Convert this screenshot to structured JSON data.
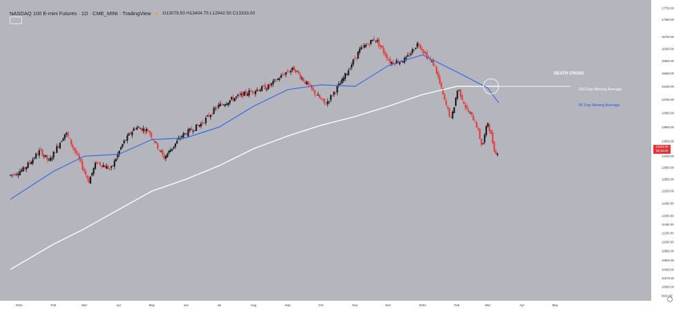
{
  "header": {
    "title": "NASDAQ 100 E-mini Futures · 1D · CME_MINI · TradingView",
    "ohlc": "O13079.50 H13404.75 L12942.50 C13333.00"
  },
  "annotations": {
    "death_cross": "DEATH CROSS",
    "ma200_label": "200 Day Moving Average",
    "ma50_label": "50 Day Moving Average"
  },
  "price_tag": {
    "price": "13333.00",
    "countdown": "02:16:49"
  },
  "colors": {
    "background": "#b4b5bd",
    "up_candle": "#1a1a1a",
    "down_candle": "#e2403f",
    "ma200": "#ffffff",
    "ma50": "#2f62e6",
    "price_tag": "#e0353b"
  },
  "chart_data": {
    "type": "candlestick",
    "title": "NASDAQ 100 E-mini Futures · 1D · CME_MINI · TradingView",
    "x_ticks": [
      "2021",
      "Feb",
      "Mar",
      "Apr",
      "May",
      "Jun",
      "Jul",
      "Aug",
      "Sep",
      "Oct",
      "Nov",
      "Dec",
      "2022",
      "Feb",
      "Mar",
      "Apr",
      "May"
    ],
    "y_ticks": [
      17750,
      17350,
      16750,
      16350,
      15950,
      15550,
      15150,
      14750,
      14350,
      13950,
      13550,
      13150,
      12850,
      12550,
      12250,
      11950,
      11650,
      11450,
      11250,
      11050,
      10850,
      10650,
      10450,
      10270,
      10090,
      9910
    ],
    "y_axis": "logarithmic",
    "ylim": [
      9850,
      17850
    ],
    "price_path": [
      {
        "date": "2020-12-24",
        "close": 12650
      },
      {
        "date": "2021-01-05",
        "close": 12800
      },
      {
        "date": "2021-01-20",
        "close": 13300
      },
      {
        "date": "2021-01-28",
        "close": 13000
      },
      {
        "date": "2021-02-12",
        "close": 13800
      },
      {
        "date": "2021-02-25",
        "close": 13000
      },
      {
        "date": "2021-03-05",
        "close": 12500
      },
      {
        "date": "2021-03-12",
        "close": 13000
      },
      {
        "date": "2021-03-25",
        "close": 12800
      },
      {
        "date": "2021-04-05",
        "close": 13500
      },
      {
        "date": "2021-04-16",
        "close": 13950
      },
      {
        "date": "2021-04-28",
        "close": 13850
      },
      {
        "date": "2021-05-12",
        "close": 13100
      },
      {
        "date": "2021-05-28",
        "close": 13700
      },
      {
        "date": "2021-06-15",
        "close": 14050
      },
      {
        "date": "2021-06-30",
        "close": 14550
      },
      {
        "date": "2021-07-15",
        "close": 14800
      },
      {
        "date": "2021-07-30",
        "close": 15000
      },
      {
        "date": "2021-08-15",
        "close": 15150
      },
      {
        "date": "2021-08-31",
        "close": 15600
      },
      {
        "date": "2021-09-07",
        "close": 15700
      },
      {
        "date": "2021-09-20",
        "close": 15150
      },
      {
        "date": "2021-10-05",
        "close": 14600
      },
      {
        "date": "2021-10-20",
        "close": 15300
      },
      {
        "date": "2021-11-05",
        "close": 16300
      },
      {
        "date": "2021-11-19",
        "close": 16700
      },
      {
        "date": "2021-12-03",
        "close": 15900
      },
      {
        "date": "2021-12-17",
        "close": 16000
      },
      {
        "date": "2021-12-28",
        "close": 16550
      },
      {
        "date": "2022-01-05",
        "close": 16100
      },
      {
        "date": "2022-01-12",
        "close": 15800
      },
      {
        "date": "2022-01-21",
        "close": 14700
      },
      {
        "date": "2022-01-27",
        "close": 14150
      },
      {
        "date": "2022-02-02",
        "close": 15100
      },
      {
        "date": "2022-02-10",
        "close": 14450
      },
      {
        "date": "2022-02-18",
        "close": 14100
      },
      {
        "date": "2022-02-24",
        "close": 13400
      },
      {
        "date": "2022-03-01",
        "close": 14100
      },
      {
        "date": "2022-03-08",
        "close": 13200
      },
      {
        "date": "2022-03-11",
        "close": 13333
      }
    ],
    "ma50_path": [
      {
        "date": "2020-12-24",
        "value": 12050
      },
      {
        "date": "2021-02-01",
        "value": 12750
      },
      {
        "date": "2021-03-01",
        "value": 13150
      },
      {
        "date": "2021-04-01",
        "value": 13200
      },
      {
        "date": "2021-05-01",
        "value": 13600
      },
      {
        "date": "2021-06-01",
        "value": 13650
      },
      {
        "date": "2021-07-01",
        "value": 13950
      },
      {
        "date": "2021-08-01",
        "value": 14550
      },
      {
        "date": "2021-09-01",
        "value": 15050
      },
      {
        "date": "2021-10-01",
        "value": 15200
      },
      {
        "date": "2021-11-01",
        "value": 15150
      },
      {
        "date": "2021-12-01",
        "value": 15800
      },
      {
        "date": "2022-01-01",
        "value": 16150
      },
      {
        "date": "2022-02-01",
        "value": 15600
      },
      {
        "date": "2022-03-01",
        "value": 15100
      },
      {
        "date": "2022-03-11",
        "value": 14650
      }
    ],
    "ma200_path": [
      {
        "date": "2020-12-24",
        "value": 10450
      },
      {
        "date": "2021-02-01",
        "value": 11000
      },
      {
        "date": "2021-03-01",
        "value": 11350
      },
      {
        "date": "2021-04-01",
        "value": 11800
      },
      {
        "date": "2021-05-01",
        "value": 12250
      },
      {
        "date": "2021-06-01",
        "value": 12550
      },
      {
        "date": "2021-07-01",
        "value": 12900
      },
      {
        "date": "2021-08-01",
        "value": 13350
      },
      {
        "date": "2021-09-01",
        "value": 13700
      },
      {
        "date": "2021-10-01",
        "value": 14000
      },
      {
        "date": "2021-11-01",
        "value": 14250
      },
      {
        "date": "2021-12-01",
        "value": 14550
      },
      {
        "date": "2022-01-01",
        "value": 14900
      },
      {
        "date": "2022-02-01",
        "value": 15150
      },
      {
        "date": "2022-03-01",
        "value": 15150
      },
      {
        "date": "2022-03-11",
        "value": 15150
      }
    ],
    "death_cross": {
      "date": "2022-03-04",
      "value": 15150
    },
    "legend": "none",
    "grid": false
  }
}
